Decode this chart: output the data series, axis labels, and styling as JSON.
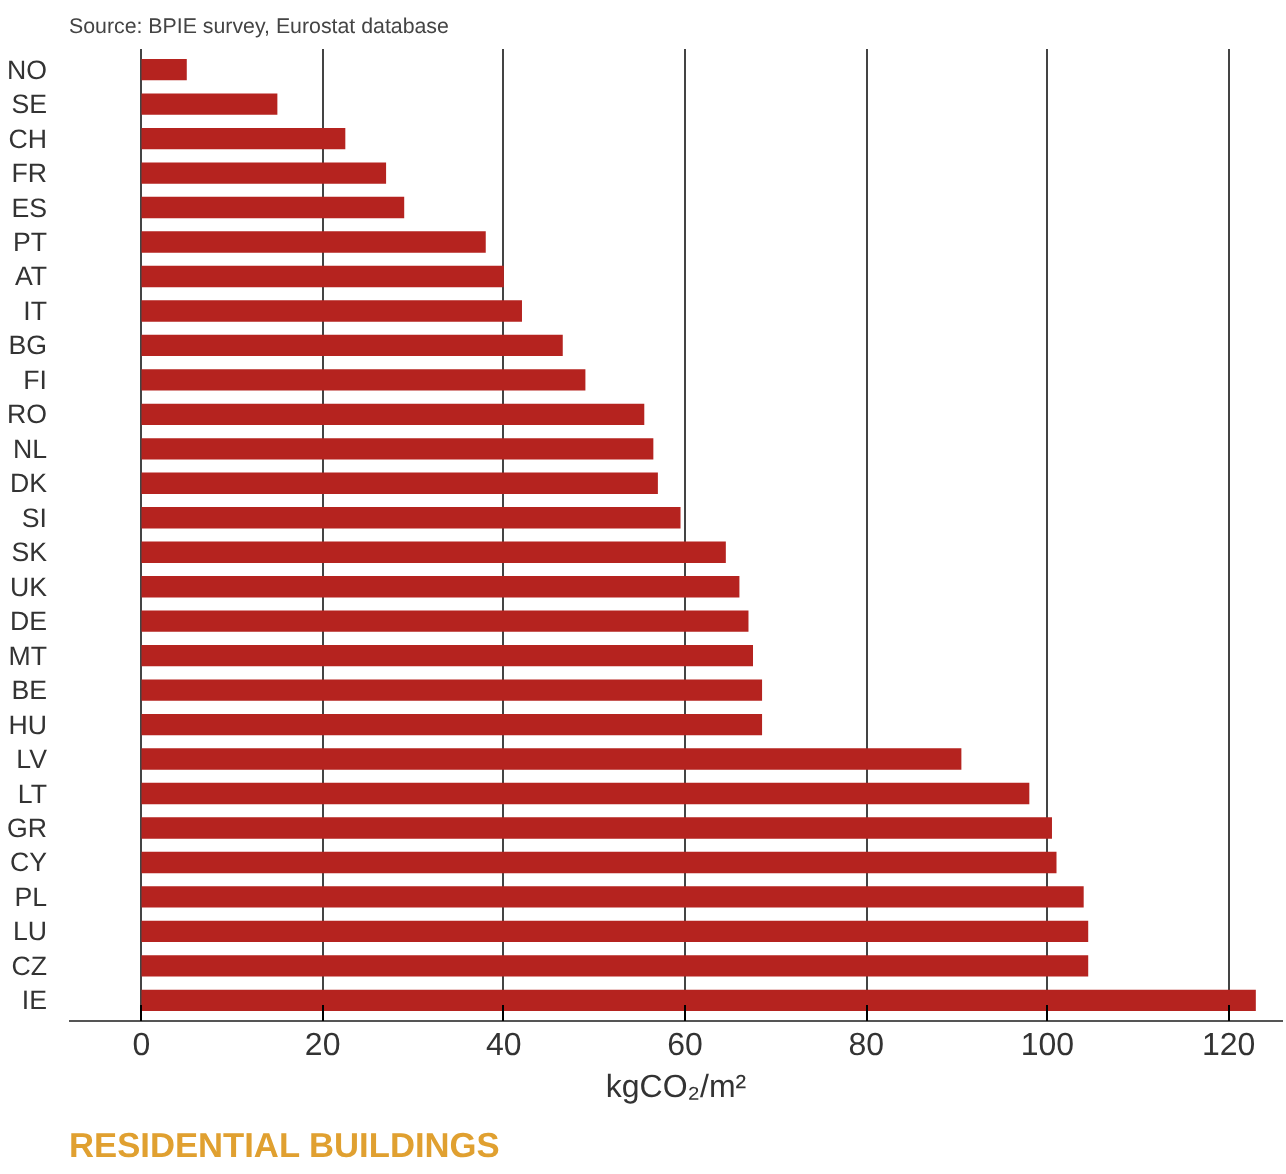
{
  "chart_data": {
    "type": "bar",
    "orientation": "horizontal",
    "categories": [
      "NO",
      "SE",
      "CH",
      "FR",
      "ES",
      "PT",
      "AT",
      "IT",
      "BG",
      "FI",
      "RO",
      "NL",
      "DK",
      "SI",
      "SK",
      "UK",
      "DE",
      "MT",
      "BE",
      "HU",
      "LV",
      "LT",
      "GR",
      "CY",
      "PL",
      "LU",
      "CZ",
      "IE"
    ],
    "values": [
      5,
      15,
      22.5,
      27,
      29,
      38,
      40,
      42,
      46.5,
      49,
      55.5,
      56.5,
      57,
      59.5,
      64.5,
      66,
      67,
      67.5,
      68.5,
      68.5,
      90.5,
      98,
      100.5,
      101,
      104,
      104.5,
      104.5,
      123
    ],
    "color": "#b5231f",
    "xlabel": "kgCO₂/m²",
    "xlim": [
      -8,
      126
    ],
    "xticks": [
      0,
      20,
      40,
      60,
      80,
      100,
      120
    ],
    "grid": "x",
    "annotations": [
      "Source: BPIE survey, Eurostat database",
      "RESIDENTIAL BUILDINGS"
    ]
  }
}
